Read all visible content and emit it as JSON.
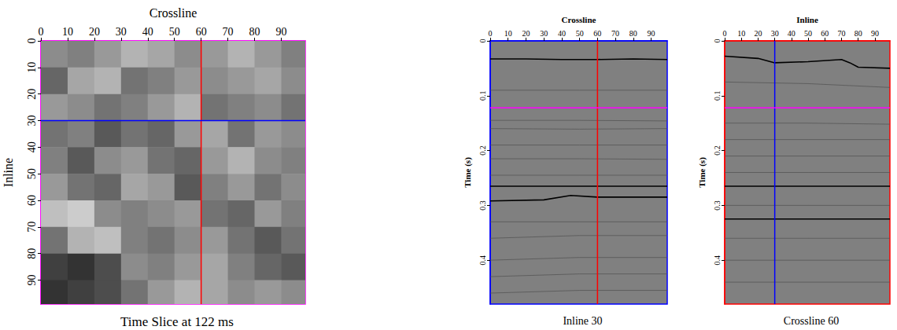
{
  "chart_data": [
    {
      "type": "slice",
      "title": "Time Slice at 122 ms",
      "x_label": "Crossline",
      "y_label": "Inline",
      "color": "#ff00ff",
      "xlim": [
        0,
        99
      ],
      "xticks": [
        0,
        10,
        20,
        30,
        40,
        50,
        60,
        70,
        80,
        90
      ],
      "ylim": [
        0,
        99
      ],
      "yticks": [
        0,
        10,
        20,
        30,
        40,
        50,
        60,
        70,
        80,
        90
      ],
      "x_edges": [
        0,
        10,
        20,
        30,
        40,
        50,
        60,
        70,
        80,
        90,
        99
      ],
      "y_edges": [
        0,
        10,
        20,
        30,
        40,
        50,
        60,
        70,
        80,
        90,
        99
      ],
      "crange": [
        0,
        1
      ],
      "cells": [
        [
          0.55,
          0.5,
          0.6,
          0.7,
          0.65,
          0.55,
          0.6,
          0.7,
          0.6,
          0.5
        ],
        [
          0.4,
          0.65,
          0.7,
          0.45,
          0.5,
          0.6,
          0.55,
          0.6,
          0.65,
          0.55
        ],
        [
          0.6,
          0.55,
          0.45,
          0.5,
          0.6,
          0.7,
          0.45,
          0.5,
          0.55,
          0.45
        ],
        [
          0.45,
          0.5,
          0.35,
          0.45,
          0.4,
          0.6,
          0.65,
          0.45,
          0.6,
          0.55
        ],
        [
          0.5,
          0.35,
          0.55,
          0.6,
          0.45,
          0.4,
          0.6,
          0.7,
          0.55,
          0.5
        ],
        [
          0.6,
          0.45,
          0.4,
          0.65,
          0.6,
          0.35,
          0.5,
          0.6,
          0.45,
          0.55
        ],
        [
          0.75,
          0.8,
          0.55,
          0.5,
          0.55,
          0.6,
          0.45,
          0.4,
          0.6,
          0.5
        ],
        [
          0.45,
          0.7,
          0.75,
          0.5,
          0.45,
          0.55,
          0.6,
          0.45,
          0.35,
          0.45
        ],
        [
          0.25,
          0.2,
          0.3,
          0.55,
          0.5,
          0.6,
          0.65,
          0.5,
          0.4,
          0.35
        ],
        [
          0.2,
          0.25,
          0.3,
          0.45,
          0.6,
          0.7,
          0.65,
          0.55,
          0.6,
          0.55
        ]
      ],
      "cursors": [
        {
          "axis": "x",
          "value": 60,
          "color": "#ff0000"
        },
        {
          "axis": "y",
          "value": 30,
          "color": "#0000ff"
        }
      ]
    },
    {
      "type": "section",
      "title": "Inline 30",
      "x_label": "Crossline",
      "y_label": "Time (s)",
      "color": "#0000ff",
      "xlim": [
        0,
        99
      ],
      "xticks": [
        0,
        10,
        20,
        30,
        40,
        50,
        60,
        70,
        80,
        90
      ],
      "ylim": [
        0,
        0.48
      ],
      "yticks": [
        0,
        0.1,
        0.2,
        0.3,
        0.4
      ],
      "horizons": [
        {
          "x": [
            0,
            20,
            40,
            60,
            80,
            99
          ],
          "values": [
            0.033,
            0.033,
            0.034,
            0.034,
            0.033,
            0.034
          ],
          "color": "#000000"
        },
        {
          "x": [
            0,
            50,
            99
          ],
          "values": [
            0.09,
            0.09,
            0.09
          ],
          "color": "#555555"
        },
        {
          "x": [
            0,
            50,
            99
          ],
          "values": [
            0.145,
            0.145,
            0.146
          ],
          "color": "#555555"
        },
        {
          "x": [
            0,
            50,
            99
          ],
          "values": [
            0.16,
            0.161,
            0.16
          ],
          "color": "#555555"
        },
        {
          "x": [
            0,
            50,
            99
          ],
          "values": [
            0.19,
            0.19,
            0.19
          ],
          "color": "#555555"
        },
        {
          "x": [
            0,
            50,
            99
          ],
          "values": [
            0.215,
            0.215,
            0.216
          ],
          "color": "#555555"
        },
        {
          "x": [
            0,
            50,
            99
          ],
          "values": [
            0.245,
            0.245,
            0.245
          ],
          "color": "#555555"
        },
        {
          "x": [
            0,
            50,
            99
          ],
          "values": [
            0.265,
            0.265,
            0.265
          ],
          "color": "#000000"
        },
        {
          "x": [
            0,
            30,
            45,
            60,
            99
          ],
          "values": [
            0.292,
            0.29,
            0.282,
            0.285,
            0.285
          ],
          "color": "#000000"
        },
        {
          "x": [
            0,
            50,
            99
          ],
          "values": [
            0.33,
            0.33,
            0.33
          ],
          "color": "#555555"
        },
        {
          "x": [
            0,
            50,
            99
          ],
          "values": [
            0.36,
            0.355,
            0.355
          ],
          "color": "#555555"
        },
        {
          "x": [
            0,
            50,
            99
          ],
          "values": [
            0.4,
            0.395,
            0.395
          ],
          "color": "#555555"
        },
        {
          "x": [
            0,
            50,
            99
          ],
          "values": [
            0.43,
            0.425,
            0.425
          ],
          "color": "#555555"
        },
        {
          "x": [
            0,
            50,
            99
          ],
          "values": [
            0.46,
            0.455,
            0.455
          ],
          "color": "#555555"
        }
      ],
      "cursors": [
        {
          "axis": "x",
          "value": 60,
          "color": "#ff0000"
        },
        {
          "axis": "y",
          "value": 0.122,
          "color": "#ff00ff"
        }
      ]
    },
    {
      "type": "section",
      "title": "Crossline 60",
      "x_label": "Inline",
      "y_label": "Time (s)",
      "color": "#ff0000",
      "xlim": [
        0,
        99
      ],
      "xticks": [
        0,
        10,
        20,
        30,
        40,
        50,
        60,
        70,
        80,
        90
      ],
      "ylim": [
        0,
        0.48
      ],
      "yticks": [
        0,
        0.1,
        0.2,
        0.3,
        0.4
      ],
      "horizons": [
        {
          "x": [
            0,
            20,
            30,
            50,
            70,
            75,
            80,
            99
          ],
          "values": [
            0.028,
            0.032,
            0.04,
            0.038,
            0.034,
            0.04,
            0.048,
            0.05
          ],
          "color": "#000000"
        },
        {
          "x": [
            0,
            50,
            99
          ],
          "values": [
            0.075,
            0.078,
            0.085
          ],
          "color": "#555555"
        },
        {
          "x": [
            0,
            50,
            99
          ],
          "values": [
            0.15,
            0.15,
            0.152
          ],
          "color": "#555555"
        },
        {
          "x": [
            0,
            50,
            99
          ],
          "values": [
            0.18,
            0.18,
            0.18
          ],
          "color": "#555555"
        },
        {
          "x": [
            0,
            50,
            99
          ],
          "values": [
            0.21,
            0.21,
            0.21
          ],
          "color": "#555555"
        },
        {
          "x": [
            0,
            50,
            99
          ],
          "values": [
            0.24,
            0.24,
            0.24
          ],
          "color": "#555555"
        },
        {
          "x": [
            0,
            50,
            99
          ],
          "values": [
            0.265,
            0.265,
            0.265
          ],
          "color": "#000000"
        },
        {
          "x": [
            0,
            50,
            99
          ],
          "values": [
            0.3,
            0.3,
            0.3
          ],
          "color": "#555555"
        },
        {
          "x": [
            0,
            50,
            99
          ],
          "values": [
            0.325,
            0.325,
            0.325
          ],
          "color": "#000000"
        },
        {
          "x": [
            0,
            50,
            99
          ],
          "values": [
            0.36,
            0.36,
            0.36
          ],
          "color": "#555555"
        },
        {
          "x": [
            0,
            50,
            99
          ],
          "values": [
            0.4,
            0.4,
            0.4
          ],
          "color": "#555555"
        },
        {
          "x": [
            0,
            50,
            99
          ],
          "values": [
            0.44,
            0.44,
            0.44
          ],
          "color": "#555555"
        }
      ],
      "cursors": [
        {
          "axis": "x",
          "value": 30,
          "color": "#0000ff"
        },
        {
          "axis": "y",
          "value": 0.122,
          "color": "#ff00ff"
        }
      ]
    }
  ]
}
